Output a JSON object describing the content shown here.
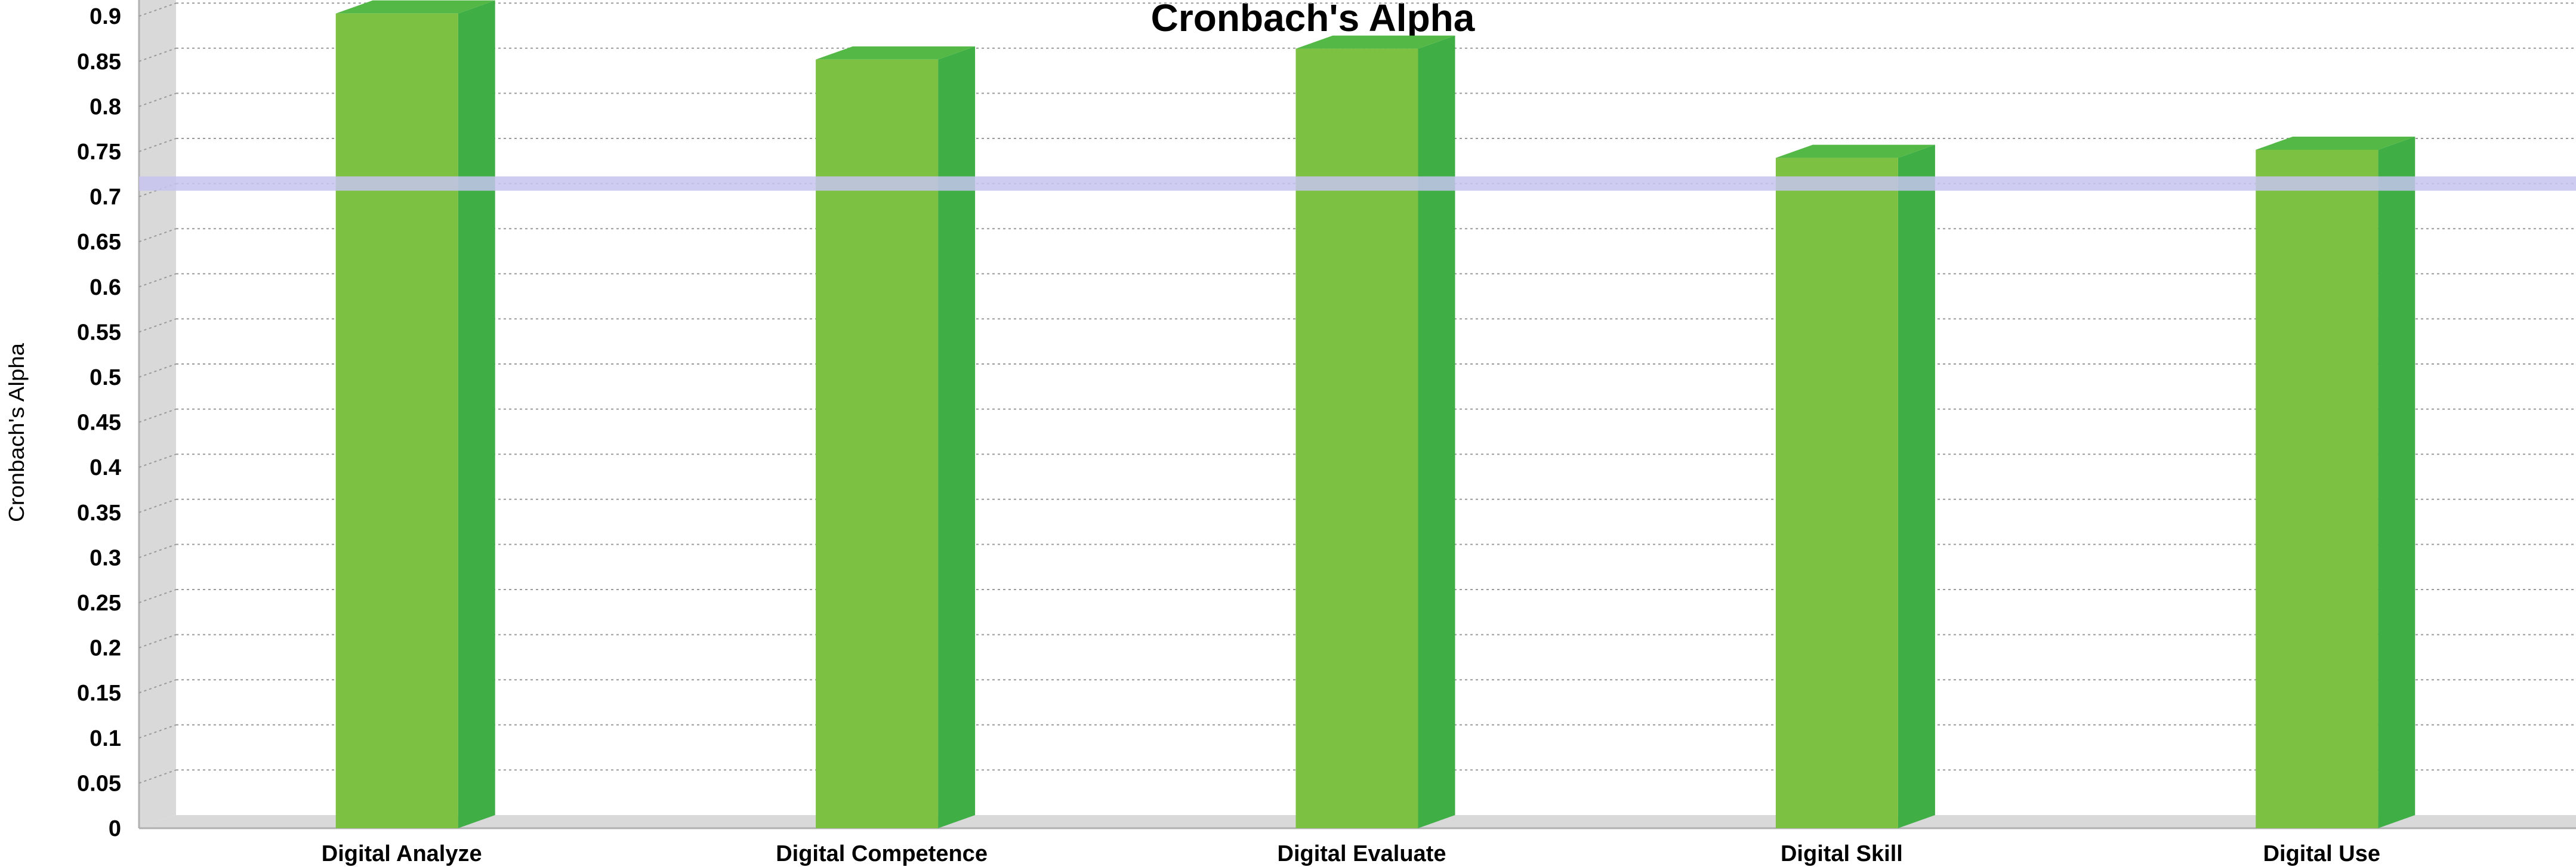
{
  "chart_data": {
    "type": "bar",
    "title": "Cronbach's Alpha",
    "xlabel": "",
    "ylabel": "Cronbach's Alpha",
    "categories": [
      "Digital Analyze",
      "Digital Competence",
      "Digital Evaluate",
      "Digital Skill",
      "Digital Use"
    ],
    "values": [
      0.903,
      0.852,
      0.864,
      0.743,
      0.752
    ],
    "ylim": [
      0,
      0.9
    ],
    "yticks": [
      "0",
      "0.05",
      "0.1",
      "0.15",
      "0.2",
      "0.25",
      "0.3",
      "0.35",
      "0.4",
      "0.45",
      "0.5",
      "0.55",
      "0.6",
      "0.65",
      "0.7",
      "0.75",
      "0.8",
      "0.85",
      "0.9"
    ],
    "threshold": 0.7,
    "grid": true,
    "legend": "none",
    "colors": {
      "bar_front": "#7dc142",
      "bar_side": "#3fae44",
      "bar_top": "#53b845",
      "threshold": "#c5c4ee",
      "wall": "#d9d9d9",
      "grid": "#9a9a9a"
    }
  }
}
